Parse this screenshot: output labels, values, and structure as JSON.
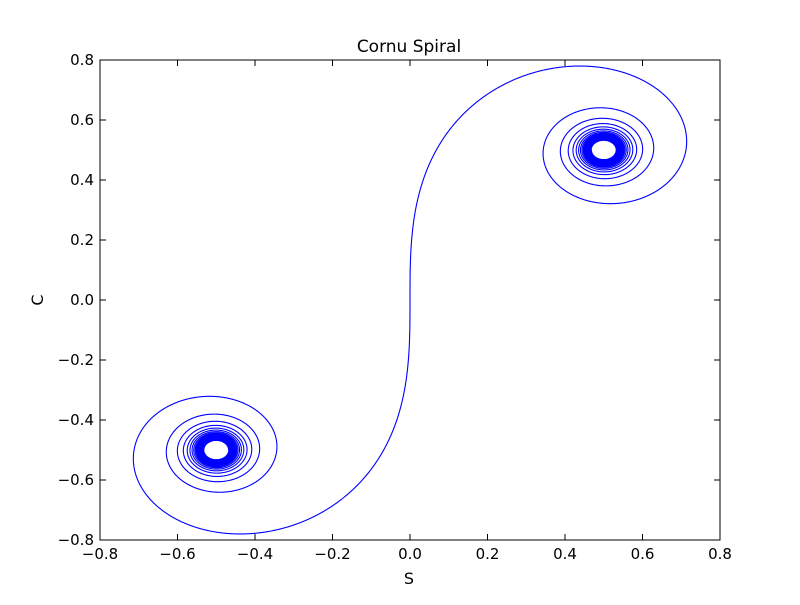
{
  "chart_data": {
    "type": "line",
    "title": "Cornu Spiral",
    "xlabel": "S",
    "ylabel": "C",
    "xlim": [
      -0.8,
      0.8
    ],
    "ylim": [
      -0.8,
      0.8
    ],
    "xticks": [
      -0.8,
      -0.6,
      -0.4,
      -0.2,
      0.0,
      0.2,
      0.4,
      0.6,
      0.8
    ],
    "yticks": [
      -0.8,
      -0.6,
      -0.4,
      -0.2,
      0.0,
      0.2,
      0.4,
      0.6,
      0.8
    ],
    "xtick_labels": [
      "−0.8",
      "−0.6",
      "−0.4",
      "−0.2",
      "0.0",
      "0.2",
      "0.4",
      "0.6",
      "0.8"
    ],
    "ytick_labels": [
      "−0.8",
      "−0.6",
      "−0.4",
      "−0.2",
      "0.0",
      "0.2",
      "0.4",
      "0.6",
      "0.8"
    ],
    "grid": false,
    "legend": false,
    "series": [
      {
        "color": "#0000ff",
        "function": "Fresnel integrals: x = S(t), y = C(t)",
        "t_range": [
          -10,
          10
        ]
      }
    ],
    "spiral_centers": [
      [
        0.5,
        0.5
      ],
      [
        -0.5,
        -0.5
      ]
    ]
  }
}
